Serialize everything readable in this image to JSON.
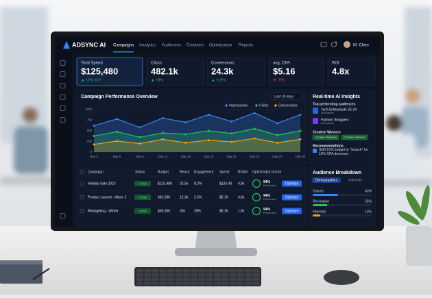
{
  "header": {
    "brand": "ADSYNC AI",
    "nav": [
      "Campaigns",
      "Analytics",
      "Audiences",
      "Creatives",
      "Optimization",
      "Reports"
    ],
    "user": "M. Chen"
  },
  "kpis": [
    {
      "label": "Total Spend",
      "value": "$125,480",
      "change": "▲ 12% YoY"
    },
    {
      "label": "Clicks",
      "value": "482.1k",
      "change": "▲ +8%"
    },
    {
      "label": "Conversions",
      "value": "24.3k",
      "change": "▲ +15%"
    },
    {
      "label": "avg. CPA",
      "value": "$5.16",
      "change": "▼ -5%"
    },
    {
      "label": "ROI",
      "value": "4.8x"
    }
  ],
  "chart_data": {
    "type": "line",
    "title": "Campaign Performance Overview",
    "range": "Last 30 days",
    "categories": [
      "Day 3",
      "Day 6",
      "Day 9",
      "Day 12",
      "Day 15",
      "Day 18",
      "Day 21",
      "Day 24",
      "Day 27",
      "Day 30"
    ],
    "series": [
      {
        "name": "Impressions",
        "color": "#3b82f6",
        "values": [
          62000,
          78000,
          58000,
          80000,
          70000,
          88000,
          72000,
          92000,
          68000,
          88000
        ]
      },
      {
        "name": "Clicks",
        "color": "#22c55e",
        "values": [
          38000,
          48000,
          35000,
          45000,
          42000,
          50000,
          44000,
          55000,
          40000,
          50000
        ]
      },
      {
        "name": "Conversions",
        "color": "#f59e0b",
        "values": [
          18000,
          26000,
          20000,
          30000,
          22000,
          28000,
          24000,
          32000,
          22000,
          30000
        ]
      }
    ],
    "ylim": [
      0,
      100000
    ],
    "yticks": [
      0,
      {
        "value": 25000,
        "label": "25k"
      },
      {
        "value": 50000,
        "label": "50k"
      },
      {
        "value": 75000,
        "label": "75k"
      },
      {
        "value": 100000,
        "label": "100k"
      }
    ],
    "grid": true
  },
  "table": {
    "columns": [
      "Campaign",
      "Status",
      "Budget",
      "Reach",
      "Engagement",
      "Spend",
      "ROAS",
      "Optimization Score"
    ],
    "rows": [
      {
        "name": "Holiday Sale 2023",
        "status": "Active",
        "budget": "$125,480",
        "reach": "32.5k",
        "engagement": "8.2%",
        "spend": "$125.40",
        "roas": "4.8x",
        "score": "94%",
        "score_note": "Performed",
        "action": "Optimize"
      },
      {
        "name": "Product Launch - Wave 2",
        "status": "Active",
        "budget": "482,000",
        "reach": "12.3k",
        "engagement": "2.5%",
        "spend": "$5.16",
        "roas": "4.8x",
        "score": "94%",
        "score_note": "Performed",
        "action": "Optimize"
      },
      {
        "name": "Retargeting - Winter",
        "status": "Active",
        "budget": "$36,000",
        "reach": "33k",
        "engagement": "25%",
        "spend": "$5.16",
        "roas": "1.8x",
        "score": "94%",
        "score_note": "Performed",
        "action": "Optimize"
      }
    ]
  },
  "insights": {
    "title": "Real-time AI Insights",
    "top_label": "Top performing audiences",
    "audiences": [
      {
        "name": "Tech Enthusiasts 25-34",
        "sub": "28 cohorts"
      },
      {
        "name": "Fashion Shoppers",
        "sub": "31 cohorts"
      }
    ],
    "creative_label": "Creative Winners",
    "creative_tags": [
      "Creative Winners",
      "Creative Winners"
    ],
    "rec_label": "Recommendations",
    "rec": "Shift 15% budget to \"Search\" for 10% CPA decrease"
  },
  "audience": {
    "title": "Audience Breakdown",
    "tabs": [
      "Demographics",
      "Interests"
    ],
    "names": [
      "Games",
      "Recreation",
      "Interests"
    ],
    "values": [
      43,
      25,
      13
    ],
    "value_labels": [
      "43%",
      "25%",
      "13%"
    ],
    "colors": [
      "#3b82f6",
      "#22c55e",
      "#f59e0b"
    ]
  }
}
